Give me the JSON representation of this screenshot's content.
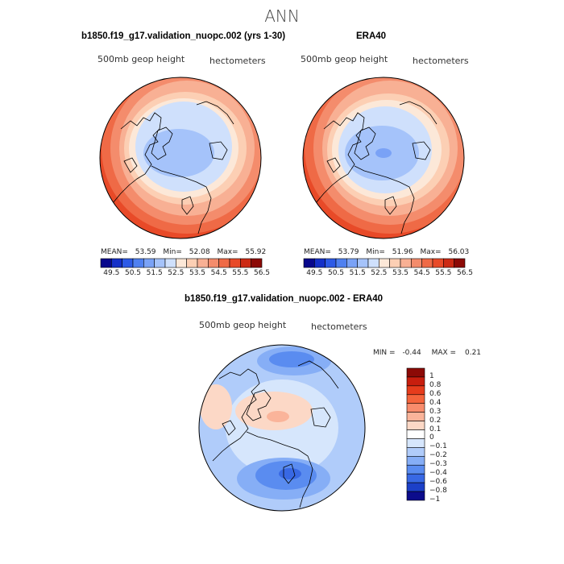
{
  "title": "ANN",
  "panels": [
    {
      "id": "model",
      "title": "b1850.f19_g17.validation_nuopc.002 (yrs 1-30)",
      "variable_label": "500mb geop height",
      "units_label": "hectometers",
      "stats": {
        "mean_label": "MEAN=",
        "mean": "53.59",
        "min_label": "Min=",
        "min": "52.08",
        "max_label": "Max=",
        "max": "55.92"
      },
      "colorbar_ticks": [
        "49.5",
        "50.5",
        "51.5",
        "52.5",
        "53.5",
        "54.5",
        "55.5",
        "56.5"
      ]
    },
    {
      "id": "obs",
      "title": "ERA40",
      "variable_label": "500mb geop height",
      "units_label": "hectometers",
      "stats": {
        "mean_label": "MEAN=",
        "mean": "53.79",
        "min_label": "Min=",
        "min": "51.96",
        "max_label": "Max=",
        "max": "56.03"
      },
      "colorbar_ticks": [
        "49.5",
        "50.5",
        "51.5",
        "52.5",
        "53.5",
        "54.5",
        "55.5",
        "56.5"
      ]
    }
  ],
  "difference": {
    "title": "b1850.f19_g17.validation_nuopc.002 - ERA40",
    "variable_label": "500mb geop height",
    "units_label": "hectometers",
    "min_label": "MIN =",
    "min": "-0.44",
    "max_label": "MAX =",
    "max": "0.21",
    "colorbar_labels": [
      "1",
      "0.8",
      "0.6",
      "0.4",
      "0.3",
      "0.2",
      "0.1",
      "0",
      "−0.1",
      "−0.2",
      "−0.3",
      "−0.4",
      "−0.6",
      "−0.8",
      "−1"
    ]
  },
  "colors": {
    "abs_scale": [
      "#08088c",
      "#1530c8",
      "#2d5ae6",
      "#4f80f0",
      "#7aa2f6",
      "#a5c3fa",
      "#cfe0fc",
      "#fce8d8",
      "#fccfb4",
      "#f8b094",
      "#f48c6c",
      "#ef6a46",
      "#e84a28",
      "#cc2a14",
      "#8c0a06"
    ],
    "diff_scale": [
      "#8c0a06",
      "#c81e0e",
      "#e63c1c",
      "#f4643c",
      "#f88c6c",
      "#fab49a",
      "#fcd8c6",
      "#ffffff",
      "#d6e6fc",
      "#b0ccfa",
      "#86aef6",
      "#5a8cf0",
      "#3868e4",
      "#1c40c8",
      "#0c0c8c"
    ]
  }
}
